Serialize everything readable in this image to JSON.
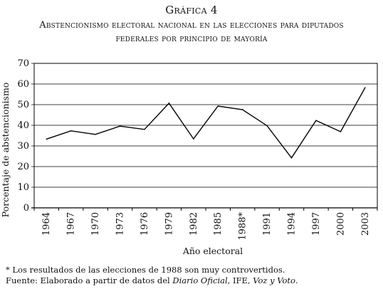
{
  "figure": {
    "title": "Gráfica 4",
    "subtitle_line1": "Abstencionismo electoral nacional en las elecciones para diputados",
    "subtitle_line2": "federales por principio de mayoría"
  },
  "chart_data": {
    "type": "line",
    "title": "Gráfica 4",
    "xlabel": "Año electoral",
    "ylabel": "Porcentaje de abstencionismo",
    "ylim": [
      0,
      70
    ],
    "yticks": [
      "0",
      "10",
      "20",
      "30",
      "40",
      "50",
      "60",
      "70"
    ],
    "categories": [
      "1964",
      "1967",
      "1970",
      "1973",
      "1976",
      "1979",
      "1982",
      "1985",
      "1988*",
      "1991",
      "1994",
      "1997",
      "2000",
      "2003"
    ],
    "series": [
      {
        "values": [
          33.3,
          37.3,
          35.6,
          39.6,
          38.0,
          50.7,
          33.4,
          49.3,
          47.6,
          39.8,
          24.2,
          42.3,
          36.9,
          58.2
        ]
      }
    ],
    "grid": "horizontal",
    "legend": "none",
    "line_color": "#000000"
  },
  "footnote": "* Los resultados de las elecciones de 1988 son muy controvertidos.",
  "source": {
    "prefix": "Fuente: Elaborado a partir de datos del ",
    "diario": "Diario Oficial",
    "sep1": ", ",
    "ife": "IFE",
    "sep2": ", ",
    "voz": "Voz y Voto",
    "end": "."
  }
}
